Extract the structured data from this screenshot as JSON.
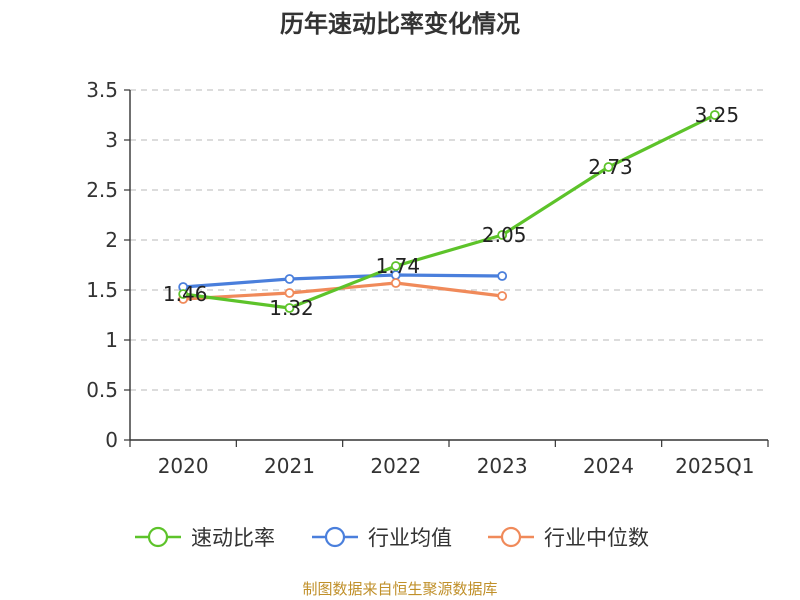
{
  "chart_data": {
    "type": "line",
    "title": "历年速动比率变化情况",
    "categories": [
      "2020",
      "2021",
      "2022",
      "2023",
      "2024",
      "2025Q1"
    ],
    "ylim": [
      0,
      3.5
    ],
    "yticks": [
      "0",
      "0.5",
      "1",
      "1.5",
      "2",
      "2.5",
      "3",
      "3.5"
    ],
    "grid": true,
    "legend_position": "bottom",
    "series": [
      {
        "name": "速动比率",
        "color": "#5dc32a",
        "values": [
          1.46,
          1.32,
          1.74,
          2.05,
          2.73,
          3.25
        ],
        "labels": [
          "1.46",
          "1.32",
          "1.74",
          "2.05",
          "2.73",
          "3.25"
        ]
      },
      {
        "name": "行业均值",
        "color": "#4a7fdc",
        "values": [
          1.53,
          1.61,
          1.65,
          1.64,
          null,
          null
        ]
      },
      {
        "name": "行业中位数",
        "color": "#f08a5a",
        "values": [
          1.41,
          1.47,
          1.57,
          1.44,
          null,
          null
        ]
      }
    ]
  },
  "source": "制图数据来自恒生聚源数据库"
}
